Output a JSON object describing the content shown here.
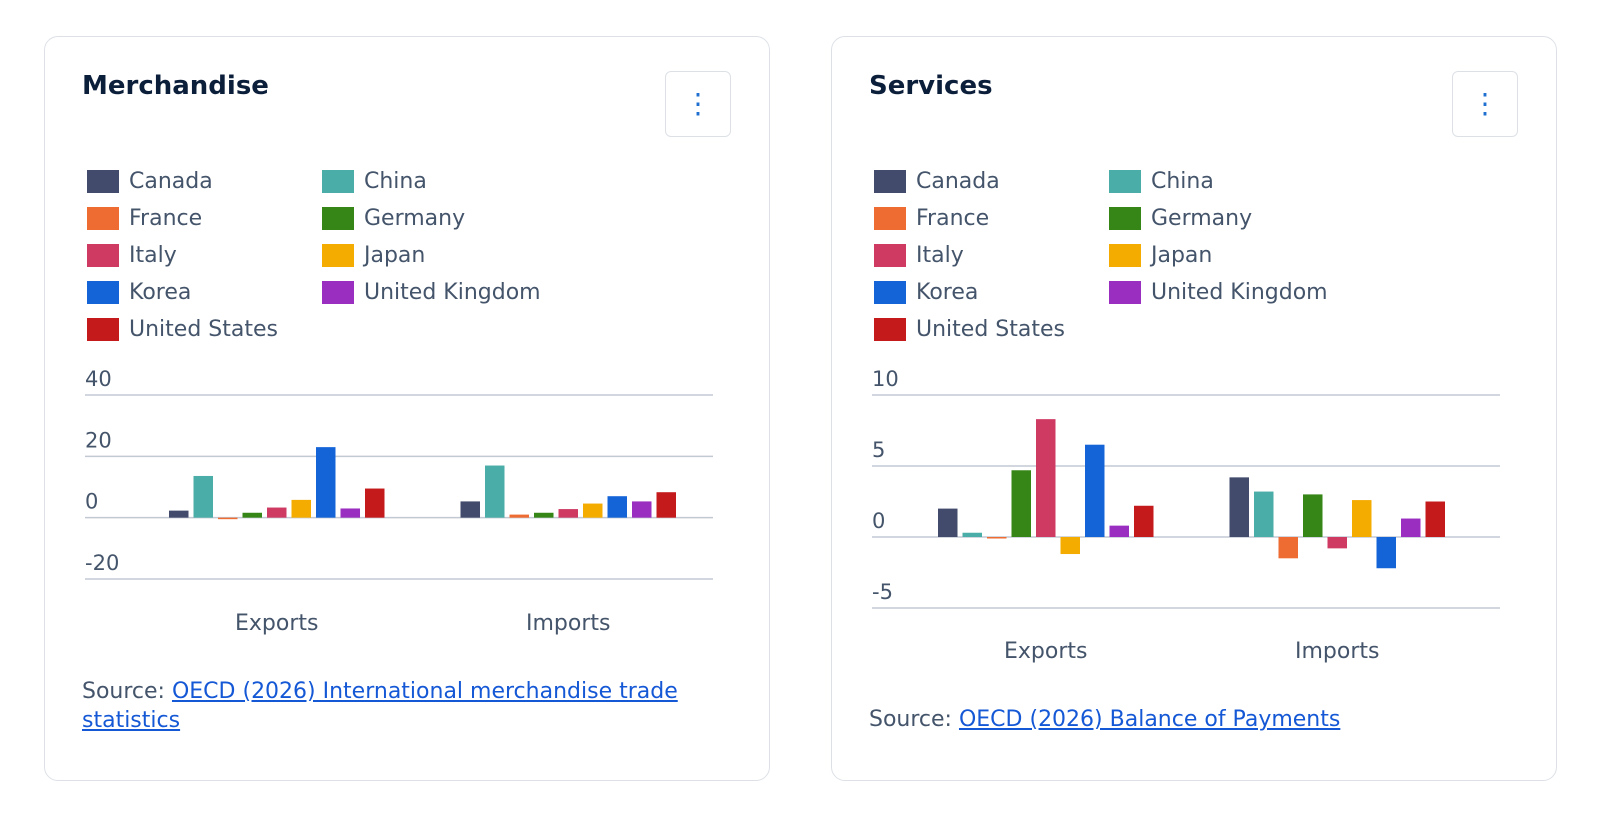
{
  "colors": {
    "Canada": "#424b6c",
    "China": "#4bada8",
    "France": "#ee6b31",
    "Germany": "#358617",
    "Italy": "#cf3a63",
    "Japan": "#f5ac00",
    "Korea": "#1464d8",
    "United Kingdom": "#9a2ec0",
    "United States": "#c41a1c"
  },
  "cards": [
    {
      "title": "Merchandise",
      "menu_icon": "more-vertical-icon",
      "menu_glyph": "⋮",
      "source_prefix": "Source: ",
      "source_link": "OECD (2026) International merchandise trade statistics",
      "legend": [
        "Canada",
        "China",
        "France",
        "Germany",
        "Italy",
        "Japan",
        "Korea",
        "United Kingdom",
        "United States"
      ]
    },
    {
      "title": "Services",
      "menu_icon": "more-vertical-icon",
      "menu_glyph": "⋮",
      "source_prefix": "Source: ",
      "source_link": "OECD (2026) Balance of Payments",
      "legend": [
        "Canada",
        "China",
        "France",
        "Germany",
        "Italy",
        "Japan",
        "Korea",
        "United Kingdom",
        "United States"
      ]
    }
  ],
  "chart_data": [
    {
      "type": "bar",
      "title": "Merchandise",
      "categories": [
        "Exports",
        "Imports"
      ],
      "ylim": [
        -20,
        40
      ],
      "yticks": [
        40,
        20,
        0,
        -20
      ],
      "ytick_labels": [
        "40",
        "20",
        "0",
        "-20"
      ],
      "grid": true,
      "legend_position": "top",
      "series": [
        {
          "name": "Canada",
          "values": [
            2.3,
            5.3
          ]
        },
        {
          "name": "China",
          "values": [
            13.6,
            17.0
          ]
        },
        {
          "name": "France",
          "values": [
            -0.3,
            1.0
          ]
        },
        {
          "name": "Germany",
          "values": [
            1.6,
            1.6
          ]
        },
        {
          "name": "Italy",
          "values": [
            3.3,
            2.8
          ]
        },
        {
          "name": "Japan",
          "values": [
            5.8,
            4.6
          ]
        },
        {
          "name": "Korea",
          "values": [
            23.0,
            7.0
          ]
        },
        {
          "name": "United Kingdom",
          "values": [
            3.0,
            5.3
          ]
        },
        {
          "name": "United States",
          "values": [
            9.5,
            8.3
          ]
        }
      ]
    },
    {
      "type": "bar",
      "title": "Services",
      "categories": [
        "Exports",
        "Imports"
      ],
      "ylim": [
        -5,
        10
      ],
      "yticks": [
        10,
        5,
        0,
        -5
      ],
      "ytick_labels": [
        "10",
        "5",
        "0",
        "-5"
      ],
      "grid": true,
      "legend_position": "top",
      "series": [
        {
          "name": "Canada",
          "values": [
            2.0,
            4.2
          ]
        },
        {
          "name": "China",
          "values": [
            0.3,
            3.2
          ]
        },
        {
          "name": "France",
          "values": [
            0.0,
            -1.5
          ]
        },
        {
          "name": "Germany",
          "values": [
            4.7,
            3.0
          ]
        },
        {
          "name": "Italy",
          "values": [
            8.3,
            -0.8
          ]
        },
        {
          "name": "Japan",
          "values": [
            -1.2,
            2.6
          ]
        },
        {
          "name": "Korea",
          "values": [
            6.5,
            -2.2
          ]
        },
        {
          "name": "United Kingdom",
          "values": [
            0.8,
            1.3
          ]
        },
        {
          "name": "United States",
          "values": [
            2.2,
            2.5
          ]
        }
      ]
    }
  ]
}
